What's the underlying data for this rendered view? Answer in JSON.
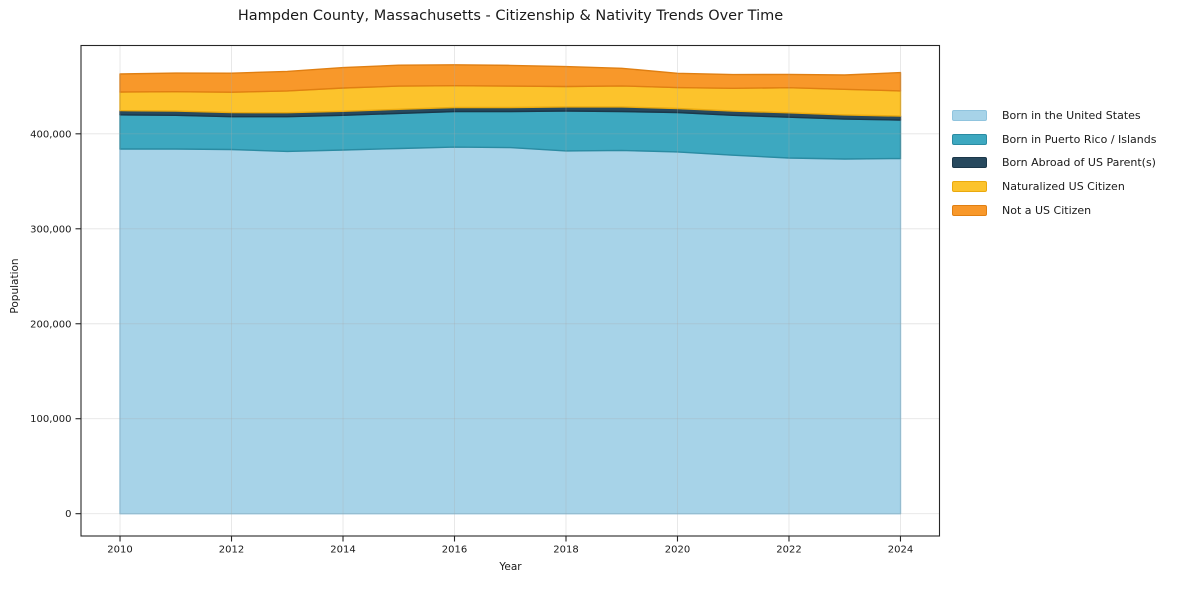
{
  "figure": {
    "background": "#ffffff"
  },
  "chart_data": {
    "type": "area",
    "stacked": true,
    "title": "Hampden County, Massachusetts - Citizenship & Nativity Trends Over Time",
    "xlabel": "Year",
    "ylabel": "Population",
    "grid": true,
    "legend_position": "right",
    "axis_color": "#262626",
    "tick_label_color": "#1a1a1a",
    "grid_color": "#aaaaaa",
    "grid_opacity": 0.3,
    "x": [
      2010,
      2011,
      2012,
      2013,
      2014,
      2015,
      2016,
      2017,
      2018,
      2019,
      2020,
      2021,
      2022,
      2023,
      2024
    ],
    "series": [
      {
        "key": "born-in-the-united-states",
        "name": "Born in the United States",
        "color": "#a7d3e8",
        "edge": "#90c4de",
        "values": [
          384000,
          384000,
          383500,
          381500,
          383000,
          384500,
          386000,
          385500,
          382000,
          382500,
          381000,
          377500,
          374500,
          373500,
          374000
        ]
      },
      {
        "key": "born-in-puerto-rico-islands",
        "name": "Born in Puerto Rico / Islands",
        "color": "#3da8c0",
        "edge": "#2a8ba2",
        "values": [
          36000,
          35500,
          34500,
          36500,
          36500,
          37000,
          37500,
          38000,
          42000,
          41000,
          41500,
          42000,
          43000,
          42000,
          40500
        ]
      },
      {
        "key": "born-abroad-of-us-parents",
        "name": "Born Abroad of US Parent(s)",
        "color": "#27495e",
        "edge": "#1b3749",
        "values": [
          4500,
          4400,
          4300,
          4200,
          4200,
          4300,
          4200,
          4200,
          4300,
          4800,
          4200,
          4400,
          4600,
          4400,
          4200
        ]
      },
      {
        "key": "naturalized-us-citizen",
        "name": "Naturalized US Citizen",
        "color": "#fcc32c",
        "edge": "#eaa90e",
        "values": [
          19500,
          20500,
          21500,
          23000,
          24500,
          24500,
          23000,
          22500,
          21500,
          22200,
          22000,
          24000,
          26500,
          27000,
          26500
        ]
      },
      {
        "key": "not-a-us-citizen",
        "name": "Not a US Citizen",
        "color": "#f8982a",
        "edge": "#e07f12",
        "values": [
          19000,
          19500,
          20000,
          20500,
          21500,
          22000,
          22000,
          21800,
          21000,
          18500,
          15000,
          14500,
          14000,
          15000,
          19300
        ]
      }
    ],
    "xticks": [
      2010,
      2012,
      2014,
      2016,
      2018,
      2020,
      2022,
      2024
    ],
    "xtick_labels": [
      "2010",
      "2012",
      "2014",
      "2016",
      "2018",
      "2020",
      "2022",
      "2024"
    ],
    "yticks": [
      0,
      100000,
      200000,
      300000,
      400000
    ],
    "ytick_labels": [
      "0",
      "100,000",
      "200,000",
      "300,000",
      "400,000"
    ],
    "xlim": [
      2009.3,
      2024.7
    ],
    "ylim": [
      -23500,
      493000
    ]
  }
}
